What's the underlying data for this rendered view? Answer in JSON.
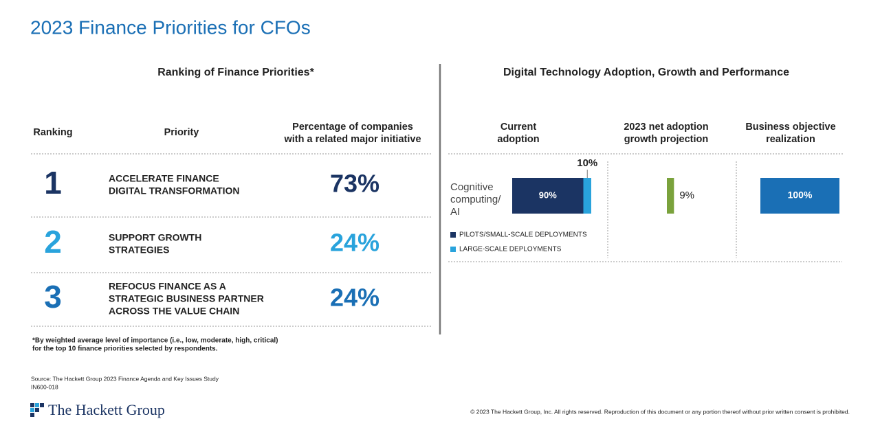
{
  "title": "2023 Finance Priorities for CFOs",
  "left": {
    "heading": "Ranking of Finance Priorities*",
    "columns": {
      "ranking": "Ranking",
      "priority": "Priority",
      "percentage": [
        "Percentage of companies",
        "with a related major initiative"
      ]
    },
    "rows": [
      {
        "rank": "1",
        "priority": [
          "ACCELERATE FINANCE",
          "DIGITAL TRANSFORMATION"
        ],
        "percent": "73%"
      },
      {
        "rank": "2",
        "priority": [
          "SUPPORT GROWTH",
          "STRATEGIES"
        ],
        "percent": "24%"
      },
      {
        "rank": "3",
        "priority": [
          "REFOCUS FINANCE AS A",
          "STRATEGIC BUSINESS PARTNER",
          "ACROSS THE VALUE CHAIN"
        ],
        "percent": "24%"
      }
    ],
    "footnote": [
      "*By weighted average level of importance (i.e., low, moderate, high, critical)",
      "for the top 10 finance priorities selected by respondents."
    ]
  },
  "right": {
    "heading": "Digital Technology Adoption, Growth and Performance",
    "columns": [
      [
        "Current",
        "adoption"
      ],
      [
        "2023 net adoption",
        "growth projection"
      ],
      [
        "Business objective",
        "realization"
      ]
    ],
    "row_label": [
      "Cognitive",
      "computing/",
      "AI"
    ],
    "adoption": [
      {
        "name": "PILOTS/SMALL-SCALE DEPLOYMENTS",
        "color": "#1b3463",
        "value": 90,
        "label": "90%"
      },
      {
        "name": "LARGE-SCALE DEPLOYMENTS",
        "color": "#29a3dc",
        "value": 10,
        "label": "10%"
      }
    ],
    "growth": {
      "value": 9,
      "label": "9%",
      "color": "#7aa23c"
    },
    "realization": {
      "value": 100,
      "label": "100%",
      "color": "#1a6fb5"
    }
  },
  "source": [
    "Source: The Hackett Group 2023 Finance Agenda and Key Issues Study",
    "IN600-018"
  ],
  "logo": "The Hackett Group",
  "copyright": "© 2023 The Hackett Group, Inc. All rights reserved. Reproduction of this document or any portion thereof without prior written consent is prohibited."
}
